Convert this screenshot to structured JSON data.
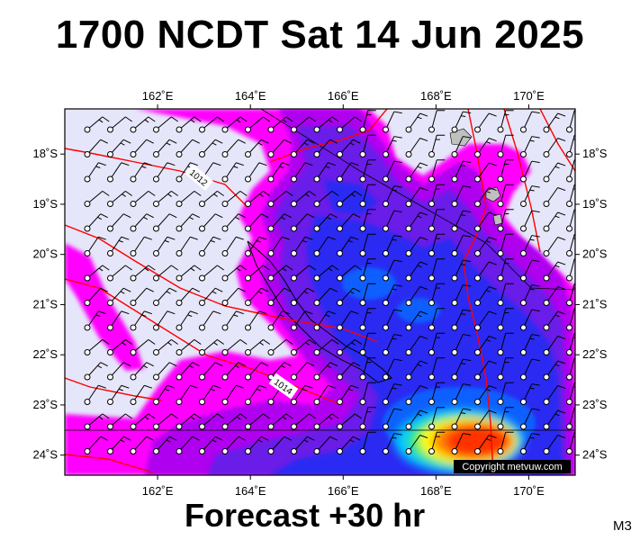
{
  "title": "1700 NCDT Sat 14 Jun 2025",
  "forecast_label": "Forecast +30 hr",
  "model_label": "M3",
  "copyright": "Copyright metvuw.com",
  "map": {
    "lon_range": [
      160,
      171
    ],
    "lat_range": [
      -24.4,
      -17.1
    ],
    "lon_ticks": [
      {
        "value": 162,
        "label": "162˚E"
      },
      {
        "value": 164,
        "label": "164˚E"
      },
      {
        "value": 166,
        "label": "166˚E"
      },
      {
        "value": 168,
        "label": "168˚E"
      },
      {
        "value": 170,
        "label": "170˚E"
      }
    ],
    "lat_ticks": [
      {
        "value": -18,
        "label": "18˚S"
      },
      {
        "value": -19,
        "label": "19˚S"
      },
      {
        "value": -20,
        "label": "20˚S"
      },
      {
        "value": -21,
        "label": "21˚S"
      },
      {
        "value": -22,
        "label": "22˚S"
      },
      {
        "value": -23,
        "label": "23˚S"
      },
      {
        "value": -24,
        "label": "24˚S"
      }
    ],
    "isobar_labels": [
      {
        "text": "1012",
        "lon": 162.8,
        "lat": -18.55
      },
      {
        "text": "1014",
        "lon": 164.7,
        "lat": -22.9
      }
    ]
  },
  "colors": {
    "background_low": "#e6e6fa",
    "band_magenta": "#ff00ff",
    "band_purple": "#b000f0",
    "band_violet": "#6a1fe8",
    "band_blue": "#2a2af2",
    "band_lightblue": "#1060ff",
    "band_cyan": "#00c8ff",
    "band_green": "#30e870",
    "band_yellow": "#ffff00",
    "band_orange": "#ff8c00",
    "band_red": "#ff3000",
    "isobar": "#ff0000"
  }
}
